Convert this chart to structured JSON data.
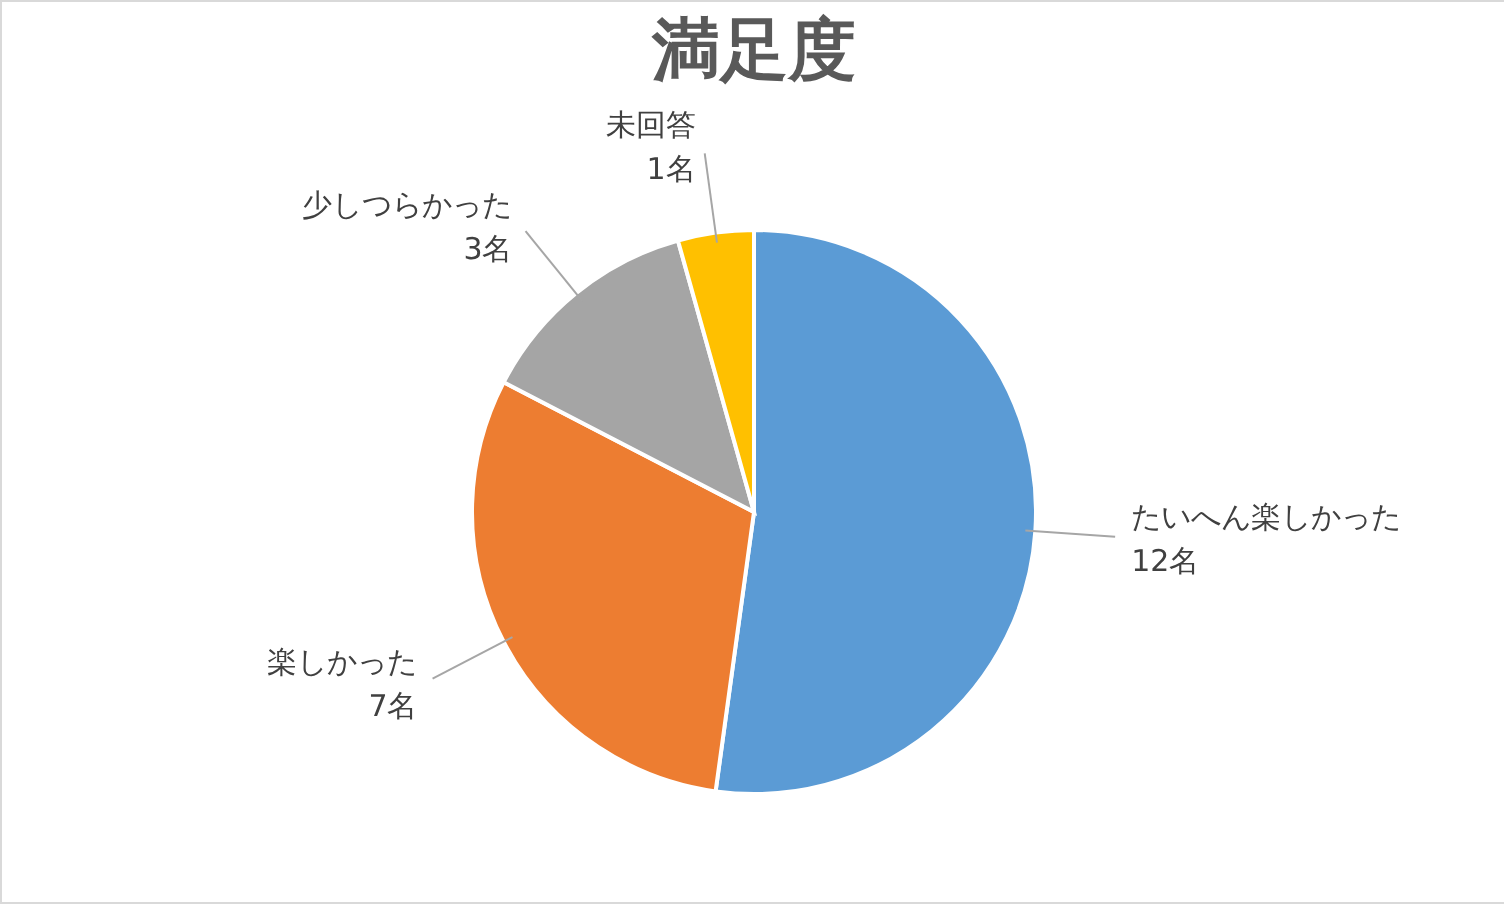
{
  "chart_data": {
    "type": "pie",
    "title": "満足度",
    "categories": [
      "たいへん楽しかった",
      "楽しかった",
      "少しつらかった",
      "未回答"
    ],
    "values": [
      12,
      7,
      3,
      1
    ],
    "value_labels": [
      "12名",
      "7名",
      "3名",
      "1名"
    ],
    "colors": [
      "#5b9bd5",
      "#ed7d31",
      "#a5a5a5",
      "#ffc000"
    ]
  }
}
